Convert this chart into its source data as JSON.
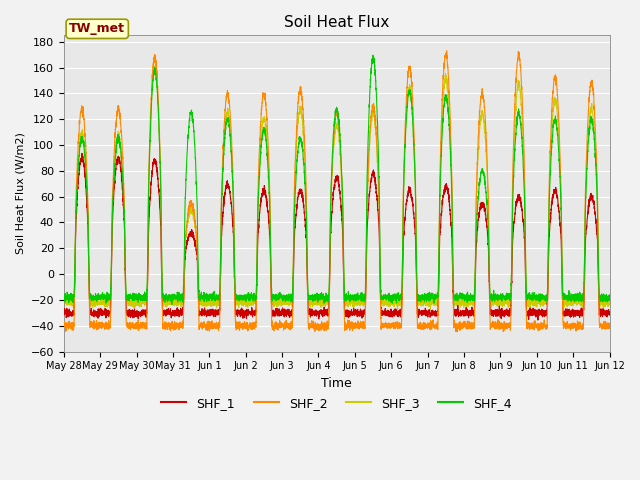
{
  "title": "Soil Heat Flux",
  "xlabel": "Time",
  "ylabel": "Soil Heat Flux (W/m2)",
  "ylim": [
    -60,
    185
  ],
  "yticks": [
    -60,
    -40,
    -20,
    0,
    20,
    40,
    60,
    80,
    100,
    120,
    140,
    160,
    180
  ],
  "x_tick_labels": [
    "May 28",
    "May 29",
    "May 30",
    "May 31",
    "Jun 1",
    "Jun 2",
    "Jun 3",
    "Jun 4",
    "Jun 5",
    "Jun 6",
    "Jun 7",
    "Jun 8",
    "Jun 9",
    "Jun 10",
    "Jun 11",
    "Jun 12"
  ],
  "legend_labels": [
    "SHF_1",
    "SHF_2",
    "SHF_3",
    "SHF_4"
  ],
  "colors": {
    "SHF_1": "#cc0000",
    "SHF_2": "#ff8800",
    "SHF_3": "#cccc00",
    "SHF_4": "#00cc00"
  },
  "plot_bg": "#e8e8e8",
  "fig_bg": "#f2f2f2",
  "grid_color": "#ffffff",
  "annotation_text": "TW_met",
  "annotation_box_color": "#ffffcc",
  "annotation_text_color": "#880000",
  "annotation_box_edge": "#999900"
}
